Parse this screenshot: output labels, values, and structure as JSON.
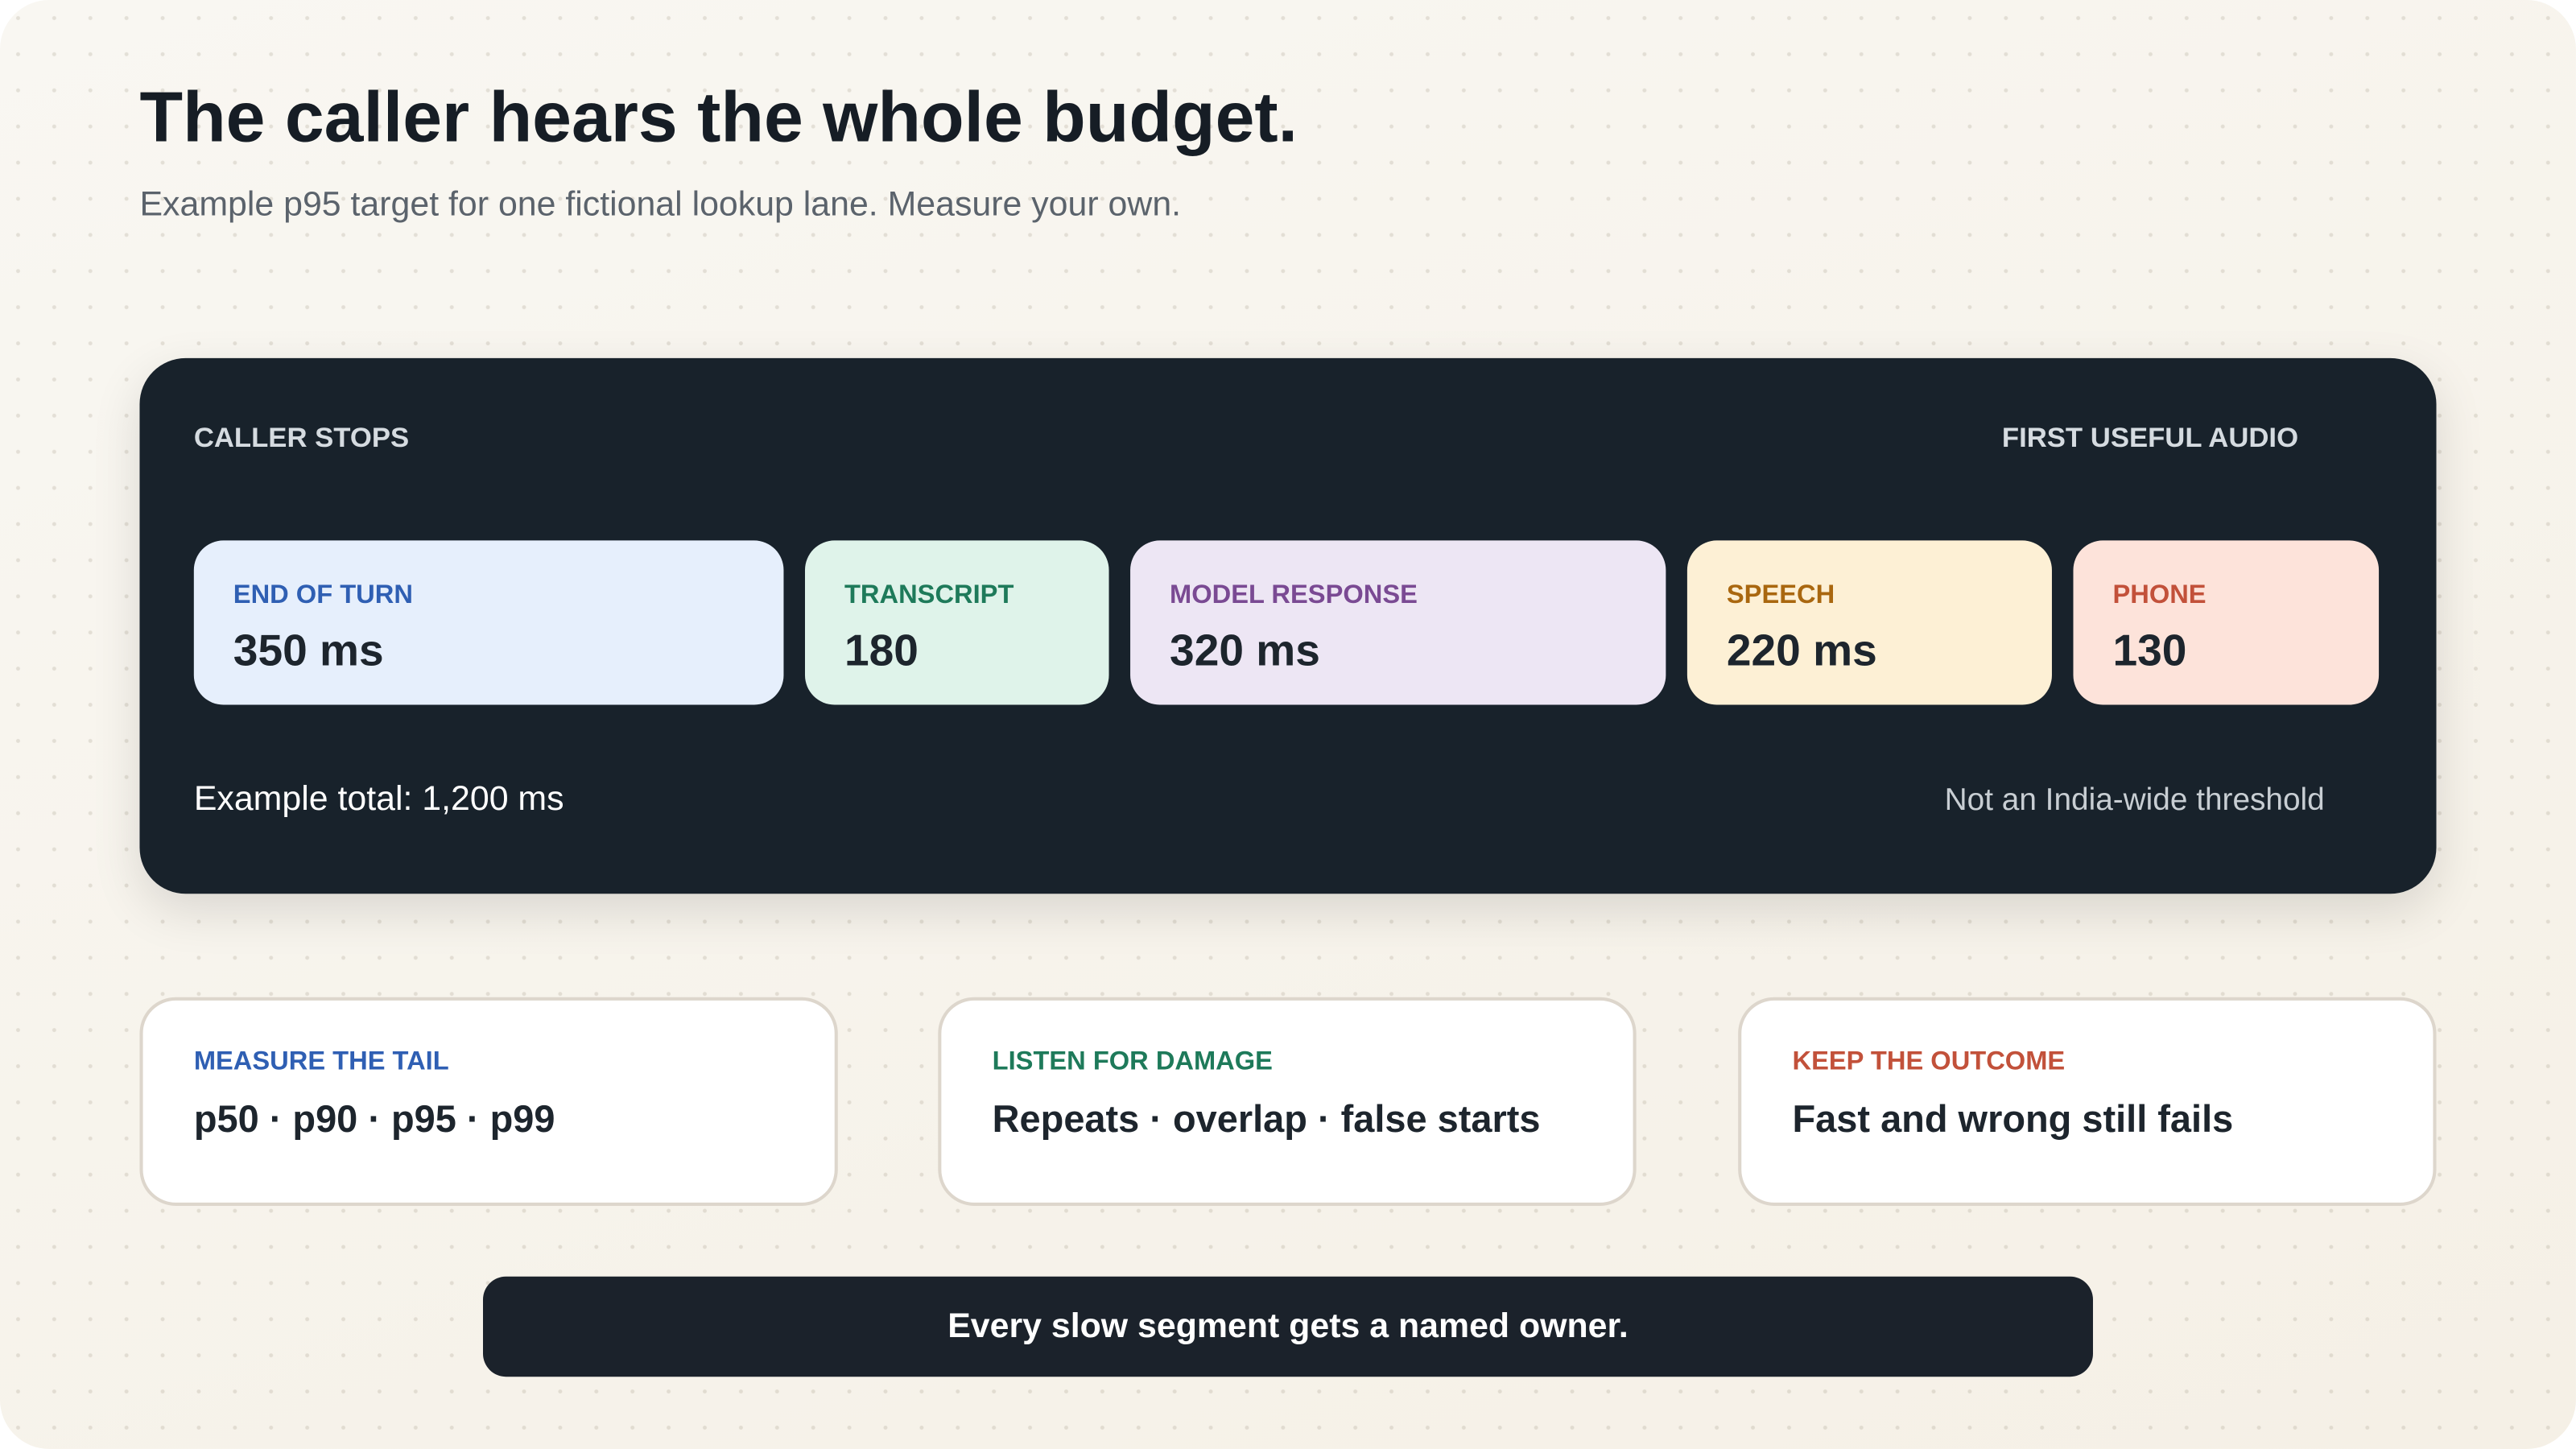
{
  "header": {
    "title": "The caller hears the whole budget.",
    "subtitle": "Example p95 target for one fictional lookup lane. Measure your own."
  },
  "budget": {
    "start_label": "CALLER STOPS",
    "end_label": "FIRST USEFUL AUDIO",
    "segments": [
      {
        "label": "END OF TURN",
        "value": "350 ms"
      },
      {
        "label": "TRANSCRIPT",
        "value": "180"
      },
      {
        "label": "MODEL RESPONSE",
        "value": "320 ms"
      },
      {
        "label": "SPEECH",
        "value": "220 ms"
      },
      {
        "label": "PHONE",
        "value": "130"
      }
    ],
    "total": "Example total: 1,200 ms",
    "note": "Not an India-wide threshold"
  },
  "cards": [
    {
      "label": "MEASURE THE TAIL",
      "text": "p50 · p90 · p95 · p99"
    },
    {
      "label": "LISTEN FOR DAMAGE",
      "text": "Repeats · overlap · false starts"
    },
    {
      "label": "KEEP THE OUTCOME",
      "text": "Fast and wrong still fails"
    }
  ],
  "footer": "Every slow segment gets a named owner."
}
